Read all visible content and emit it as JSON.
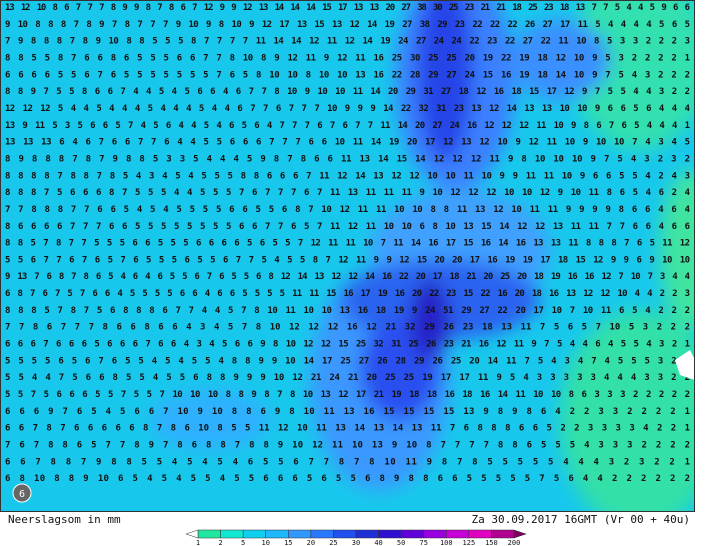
{
  "map": {
    "grid_rows": [
      "13 12 10 8 6 7 7 7 8 9 9 8 7 8 6 7 12 9 9 12 13 14 14 14 15 17 13 13 20 27 38 30 25 23 21 21 18 25 23 18 13 7 7 5 4 4 5 9 6 6",
      "9 10 8 8 8 7 8 9 7 8 7 7 7 9 10 9 8 10 9 12 17 13 15 13 12 14 19 27 38 29 23 22 22 22 26 27 17 11 5 4 4 4 4 5 6 5",
      "7 9 8 8 8 7 8 9 10 8 8 5 5 5 8 7 7 7 7 11 14 14 12 11 12 14 19 24 27 24 24 22 23 22 27 22 11 10 8 5 3 3 2 2 2 3",
      "8 8 5 5 8 7 6 6 8 6 5 5 5 6 6 7 7 8 10 8 9 12 11 9 12 11 16 25 30 25 25 20 19 22 19 18 12 10 9 5 3 2 2 2 2 1",
      "6 6 6 6 5 5 6 7 6 5 5 5 5 5 5 5 7 6 5 8 10 10 8 10 10 13 16 22 28 29 27 24 15 16 19 18 14 10 9 7 5 4 3 2 2 2",
      "8 8 9 7 5 5 8 6 6 7 4 4 5 4 5 6 6 4 6 7 7 8 10 9 10 10 11 14 20 29 31 27 18 12 16 18 15 17 12 9 7 5 5 4 4 3 2 2",
      "12 12 12 5 4 4 5 4 4 4 5 4 4 4 5 4 4 6 7 7 6 7 7 7 10 9 9 9 14 22 32 31 23 13 12 14 13 13 10 10 9 6 6 5 6 4 4 4",
      "13 9 11 5 3 5 6 6 5 7 4 5 6 4 4 5 4 6 5 6 4 7 7 7 6 7 6 7 7 11 14 20 27 24 16 12 12 12 11 10 9 8 6 7 6 5 4 4 4 1",
      "13 13 13 6 4 6 7 6 6 7 7 6 4 4 5 5 6 6 6 7 7 7 6 6 10 11 14 19 20 17 12 13 12 10 9 12 11 10 9 10 10 7 4 3 4 5",
      "8 9 8 8 8 7 8 7 9 8 8 5 3 3 5 4 4 4 5 9 8 7 8 6 6 11 13 14 15 14 12 12 12 11 9 8 10 10 10 9 7 5 4 3 2 3 2",
      "8 8 8 8 7 8 8 7 8 5 4 3 4 5 4 5 5 5 8 8 6 6 6 7 11 12 14 13 12 12 10 10 11 10 9 9 11 11 10 9 6 6 5 5 4 2 4 3",
      "8 8 8 7 5 6 6 6 8 7 5 5 5 4 4 5 5 5 7 6 7 7 7 6 7 11 13 11 11 11 9 10 12 12 12 10 10 12 9 10 11 8 6 5 4 6 2 4",
      "7 7 8 8 8 7 7 6 6 5 4 5 4 5 5 5 5 6 6 5 5 6 8 7 10 12 11 11 10 10 8 8 11 13 12 10 11 11 9 9 9 9 8 6 6 4 6 4",
      "8 6 6 6 6 7 7 7 6 6 5 5 5 5 5 5 5 5 6 6 7 7 6 5 7 11 12 11 10 10 6 8 10 13 15 14 12 12 13 11 11 7 7 6 6 4 6 6",
      "8 8 5 7 8 7 7 5 5 5 6 6 5 5 5 6 6 6 6 5 6 5 5 7 12 11 11 10 7 11 14 16 17 15 16 14 16 13 13 11 8 8 8 7 6 5 11 12",
      "5 5 6 7 7 6 7 6 5 7 6 5 5 5 6 5 5 6 7 7 5 4 5 5 8 7 12 11 9 9 12 15 20 20 17 16 19 19 17 18 15 12 9 9 6 9 10 10",
      "9 13 7 6 8 7 8 6 5 4 6 4 6 5 5 6 7 6 5 5 6 8 12 14 13 12 12 14 16 22 20 17 18 21 20 25 20 18 19 16 16 12 7 10 7 3 4 4",
      "6 8 7 6 7 5 7 6 6 4 5 5 5 5 6 6 4 6 6 5 5 5 5 11 11 15 16 17 19 16 20 22 23 15 22 16 20 18 16 13 12 12 10 4 4 2 2 3",
      "8 8 8 5 7 8 7 5 6 8 8 8 6 7 7 4 4 5 7 8 10 11 10 10 13 16 18 19 9 24 51 29 27 22 20 17 10 7 10 11 6 5 4 2 2 2",
      "7 7 8 6 7 7 7 8 6 6 8 6 6 4 3 4 5 7 8 10 12 12 12 16 12 21 32 29 26 23 18 13 11 7 5 6 5 7 10 5 3 2 2 2",
      "6 6 6 7 6 6 6 5 6 6 6 7 6 6 4 3 4 5 6 6 9 8 10 12 12 15 25 32 31 25 26 23 21 16 12 11 9 7 5 4 4 6 4 5 5 4 3 2 1",
      "5 5 5 5 6 5 6 7 6 5 5 4 5 4 5 5 4 8 8 9 9 10 14 17 25 27 26 28 29 26 25 20 14 11 7 5 4 3 4 7 4 5 5 5 3 2 1",
      "5 5 4 4 7 5 6 6 8 5 5 4 5 5 6 8 8 9 9 9 10 12 21 24 21 20 25 25 19 17 17 11 9 5 4 3 3 3 3 3 4 4 4 3 3 2 2",
      "5 5 7 5 6 6 6 5 5 7 5 5 7 10 10 10 8 8 9 8 7 8 10 13 12 17 21 19 18 18 16 18 16 14 11 10 10 8 6 3 3 3 2 2 2 2 2",
      "6 6 6 9 7 6 5 4 5 6 6 7 10 9 10 8 8 6 9 8 10 11 13 16 15 15 15 15 13 9 8 9 8 6 4 2 2 3 3 2 2 2 2 1",
      "6 6 7 8 7 6 6 6 6 6 8 7 8 6 10 8 5 5 11 12 10 11 13 14 13 14 13 11 7 6 8 8 8 6 6 5 2 2 3 3 3 3 4 2 2 1",
      "7 6 7 8 8 6 5 7 7 8 9 7 8 6 8 8 7 8 8 9 10 12 11 10 13 9 10 8 7 7 7 7 8 8 6 5 5 5 4 3 3 3 2 2 2 2",
      "6 6 7 8 8 7 9 8 8 5 5 4 5 4 5 4 6 5 5 6 7 7 8 7 8 10 11 9 8 7 8 5 5 5 5 5 4 4 4 3 2 3 2 2 1",
      "6 8 10 8 8 9 10 6 5 4 5 4 5 5 4 5 5 6 6 6 5 6 5 5 6 8 9 8 8 6 6 5 5 5 5 5 7 5 6 4 4 2 2 2 2 2 2"
    ],
    "badge": "6",
    "footer": {
      "left": "Neerslagsom in mm",
      "right": "Za 30.09.2017 16GMT (Vr 00 + 40u)"
    },
    "legend": {
      "labels": [
        1,
        2,
        5,
        10,
        15,
        20,
        25,
        30,
        40,
        50,
        75,
        100,
        125,
        150,
        200
      ],
      "colors": [
        "#20e8a0",
        "#10e8d0",
        "#10d0f0",
        "#20b8ff",
        "#3098ff",
        "#2878ff",
        "#2050f0",
        "#2030d8",
        "#3010d0",
        "#6000d8",
        "#9800e0",
        "#c800d8",
        "#e000c0",
        "#b00090"
      ]
    }
  }
}
